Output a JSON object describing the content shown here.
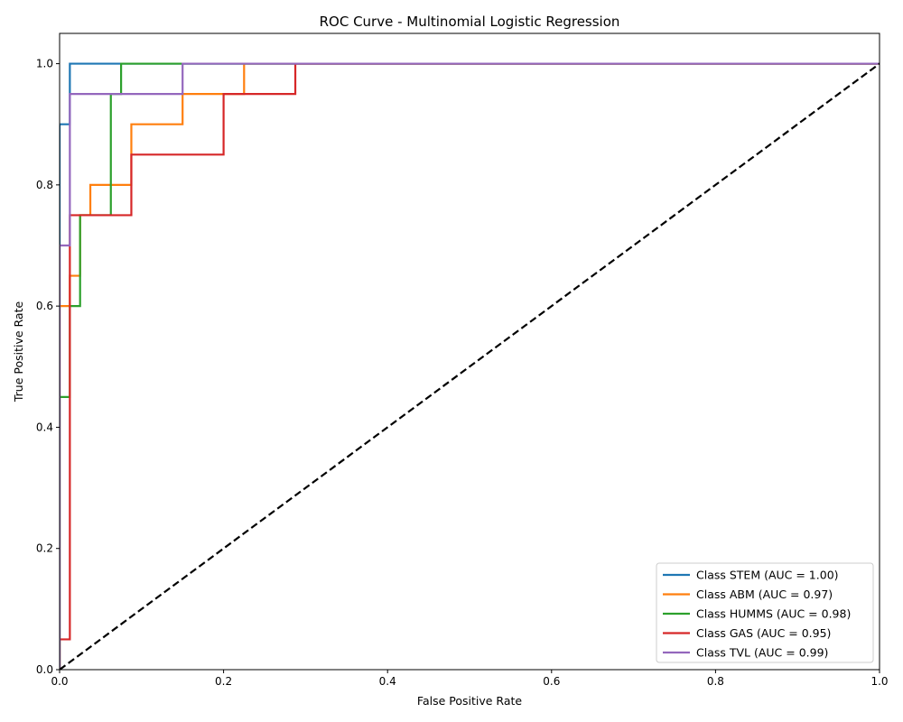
{
  "chart_data": {
    "type": "line",
    "title": "ROC Curve - Multinomial Logistic Regression",
    "xlabel": "False Positive Rate",
    "ylabel": "True Positive Rate",
    "xlim": [
      0,
      1
    ],
    "ylim": [
      0,
      1.05
    ],
    "x_ticks": [
      "0.0",
      "0.2",
      "0.4",
      "0.6",
      "0.8",
      "1.0"
    ],
    "y_ticks": [
      "0.0",
      "0.2",
      "0.4",
      "0.6",
      "0.8",
      "1.0"
    ],
    "grid": false,
    "legend_position": "lower-right",
    "series": [
      {
        "name": "Class STEM (AUC = 1.00)",
        "color": "#1f77b4",
        "x": [
          0,
          0,
          0.0125,
          0.0125,
          1
        ],
        "y": [
          0,
          0.9,
          0.9,
          1.0,
          1.0
        ]
      },
      {
        "name": "Class ABM (AUC = 0.97)",
        "color": "#ff7f0e",
        "x": [
          0,
          0,
          0.0125,
          0.0125,
          0.025,
          0.025,
          0.0375,
          0.0375,
          0.0875,
          0.0875,
          0.15,
          0.15,
          0.225,
          0.225,
          1
        ],
        "y": [
          0,
          0.6,
          0.6,
          0.65,
          0.65,
          0.75,
          0.75,
          0.8,
          0.8,
          0.9,
          0.9,
          0.95,
          0.95,
          1.0,
          1.0
        ]
      },
      {
        "name": "Class HUMMS (AUC = 0.98)",
        "color": "#2ca02c",
        "x": [
          0,
          0,
          0.0125,
          0.0125,
          0.025,
          0.025,
          0.0625,
          0.0625,
          0.075,
          0.075,
          1
        ],
        "y": [
          0,
          0.45,
          0.45,
          0.6,
          0.6,
          0.75,
          0.75,
          0.95,
          0.95,
          1.0,
          1.0
        ]
      },
      {
        "name": "Class GAS (AUC = 0.95)",
        "color": "#d62728",
        "x": [
          0,
          0,
          0.0125,
          0.0125,
          0.0875,
          0.0875,
          0.2,
          0.2,
          0.2875,
          0.2875,
          1
        ],
        "y": [
          0,
          0.05,
          0.05,
          0.75,
          0.75,
          0.85,
          0.85,
          0.95,
          0.95,
          1.0,
          1.0
        ]
      },
      {
        "name": "Class TVL (AUC = 0.99)",
        "color": "#9467bd",
        "x": [
          0,
          0,
          0.0125,
          0.0125,
          0.15,
          0.15,
          1
        ],
        "y": [
          0,
          0.7,
          0.7,
          0.95,
          0.95,
          1.0,
          1.0
        ]
      },
      {
        "name": "",
        "color": "#000000",
        "dashed": true,
        "x": [
          0,
          1
        ],
        "y": [
          0,
          1
        ]
      }
    ]
  }
}
